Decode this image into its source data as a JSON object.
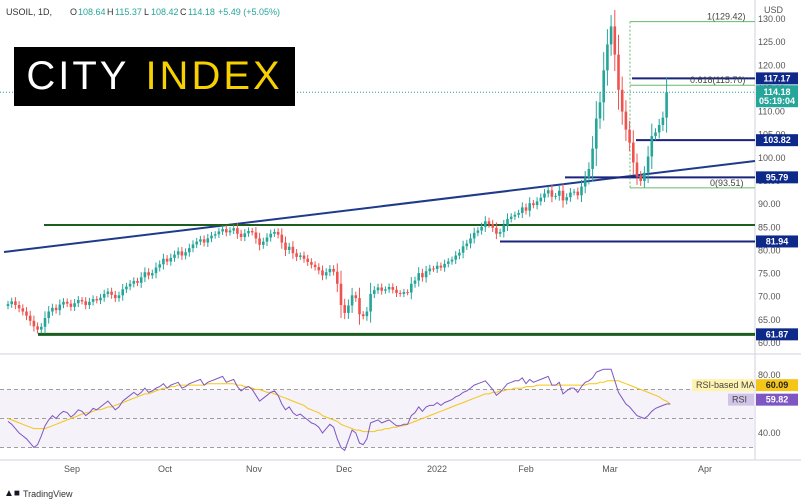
{
  "header": {
    "symbol": "USOIL, 1D,",
    "open_label": "O",
    "open": "108.64",
    "high_label": "H",
    "high": "115.37",
    "low_label": "L",
    "low": "108.42",
    "close_label": "C",
    "close": "114.18",
    "change": "+5.49 (+5.05%)"
  },
  "currency": "USD",
  "logo": {
    "word1": "CITY",
    "word2": "INDEX"
  },
  "footer": {
    "brand": "TradingView",
    "icon": "tradingview-logo-icon"
  },
  "price_tag": {
    "value": "114.18",
    "countdown": "05:19:04"
  },
  "levels": [
    {
      "label": "117.17",
      "value": 117.17
    },
    {
      "label": "103.82",
      "value": 103.82
    },
    {
      "label": "95.79",
      "value": 95.79
    },
    {
      "label": "81.94",
      "value": 81.94
    },
    {
      "label": "61.87",
      "value": 61.87
    }
  ],
  "fib": [
    {
      "label": "1(129.42)",
      "value": 129.42
    },
    {
      "label": "0.618(115.70)",
      "value": 115.7
    },
    {
      "label": "0(93.51)",
      "value": 93.51
    }
  ],
  "rsi_panel": {
    "ma_label": "RSI-based MA",
    "ma_value": "60.09",
    "rsi_label": "RSI",
    "rsi_value": "59.82",
    "ticks": [
      "80.00",
      "40.00"
    ]
  },
  "colors": {
    "up": "#26a69a",
    "down": "#ef5350",
    "level_line": "#1a237e",
    "support_green": "#1b5e20",
    "trend_line": "#1e3a8a",
    "rsi_line": "#7e57c2",
    "rsi_ma": "#f5c518",
    "tag_blue": "#0d2a8a"
  },
  "chart_data": [
    {
      "type": "candlestick",
      "title": "USOIL, 1D",
      "ylabel": "USD",
      "ylim": [
        58,
        131
      ],
      "y_ticks": [
        "130.00",
        "125.00",
        "120.00",
        "115.00",
        "110.00",
        "105.00",
        "100.00",
        "95.00",
        "90.00",
        "85.00",
        "80.00",
        "75.00",
        "70.00",
        "65.00",
        "60.00"
      ],
      "x_ticks": [
        "Sep",
        "Oct",
        "Nov",
        "Dec",
        "2022",
        "Feb",
        "Mar",
        "Apr"
      ],
      "horizontal_levels": [
        117.17,
        103.82,
        95.79,
        85.5,
        81.94,
        61.87
      ],
      "trendline": {
        "from": [
          "Aug",
          80.0
        ],
        "to": [
          "late Mar",
          99.5
        ]
      },
      "fib_retracement": {
        "1": 129.42,
        "0.618": 115.7,
        "0": 93.51
      },
      "last_close": 114.18,
      "closes": [
        68.4,
        69.0,
        68.2,
        67.5,
        66.8,
        65.9,
        64.8,
        63.6,
        62.9,
        63.5,
        65.4,
        66.8,
        67.6,
        67.1,
        68.3,
        68.9,
        68.5,
        67.8,
        68.6,
        69.3,
        69.0,
        68.2,
        68.9,
        69.5,
        69.2,
        69.8,
        70.6,
        71.1,
        70.4,
        69.7,
        70.3,
        71.6,
        72.2,
        72.8,
        73.4,
        73.0,
        74.2,
        75.3,
        74.6,
        75.1,
        76.3,
        77.0,
        78.2,
        77.6,
        78.4,
        79.1,
        79.8,
        78.9,
        79.6,
        80.5,
        81.3,
        81.9,
        82.4,
        81.7,
        82.6,
        83.2,
        83.5,
        84.1,
        84.6,
        83.9,
        84.3,
        84.8,
        83.6,
        82.9,
        83.7,
        84.2,
        83.9,
        82.6,
        81.2,
        81.9,
        82.8,
        83.6,
        84.0,
        83.4,
        81.7,
        80.1,
        80.8,
        79.4,
        78.6,
        78.9,
        78.2,
        77.5,
        76.9,
        76.4,
        75.7,
        74.6,
        75.3,
        76.0,
        75.4,
        72.8,
        68.2,
        66.5,
        68.1,
        70.3,
        69.7,
        66.2,
        65.8,
        66.8,
        70.6,
        71.4,
        72.0,
        71.3,
        71.6,
        72.1,
        71.5,
        70.8,
        70.6,
        71.0,
        70.9,
        72.8,
        73.5,
        75.1,
        74.2,
        75.5,
        76.1,
        76.0,
        76.7,
        76.3,
        77.1,
        77.6,
        78.0,
        78.9,
        79.5,
        80.9,
        81.5,
        82.6,
        83.8,
        84.3,
        85.1,
        86.3,
        85.7,
        84.9,
        83.6,
        84.0,
        85.4,
        86.8,
        87.3,
        87.7,
        88.1,
        89.3,
        88.6,
        90.2,
        89.8,
        90.6,
        91.4,
        92.3,
        93.0,
        91.6,
        91.8,
        92.9,
        90.8,
        91.5,
        92.5,
        92.7,
        91.9,
        93.8,
        95.7,
        97.6,
        102.0,
        108.5,
        112.0,
        118.9,
        124.5,
        128.4,
        122.3,
        114.7,
        110.0,
        106.1,
        103.3,
        99.0,
        96.1,
        95.0,
        96.8,
        100.3,
        104.7,
        105.5,
        107.1,
        108.7,
        114.2
      ],
      "rsi": {
        "y_ticks": [
          "80.00",
          "40.00"
        ],
        "rsi_last": 59.82,
        "ma_last": 60.09,
        "rsi_values": [
          48,
          46,
          43,
          40,
          38,
          36,
          33,
          30,
          32,
          38,
          45,
          49,
          52,
          50,
          53,
          55,
          54,
          51,
          53,
          56,
          55,
          52,
          54,
          57,
          56,
          58,
          60,
          62,
          59,
          56,
          58,
          62,
          64,
          66,
          68,
          66,
          68,
          71,
          68,
          69,
          71,
          72,
          74,
          71,
          73,
          74,
          75,
          71,
          72,
          74,
          75,
          76,
          77,
          73,
          75,
          76,
          77,
          78,
          79,
          75,
          76,
          77,
          72,
          69,
          71,
          72,
          70,
          66,
          62,
          64,
          66,
          68,
          69,
          66,
          60,
          56,
          58,
          54,
          52,
          53,
          51,
          49,
          47,
          46,
          44,
          40,
          43,
          46,
          44,
          36,
          30,
          28,
          35,
          42,
          40,
          33,
          32,
          36,
          47,
          48,
          49,
          47,
          48,
          49,
          47,
          45,
          45,
          46,
          46,
          52,
          54,
          58,
          55,
          58,
          59,
          59,
          61,
          59,
          61,
          62,
          63,
          65,
          66,
          68,
          69,
          71,
          73,
          74,
          75,
          76,
          73,
          70,
          66,
          68,
          71,
          74,
          75,
          76,
          76,
          78,
          74,
          77,
          75,
          76,
          77,
          78,
          79,
          73,
          73,
          75,
          67,
          69,
          71,
          71,
          68,
          72,
          75,
          76,
          78,
          82,
          83,
          84,
          84,
          84,
          76,
          68,
          64,
          60,
          58,
          55,
          52,
          51,
          50,
          52,
          55,
          57,
          58,
          59,
          60,
          60
        ],
        "ma_values": [
          50,
          49,
          48,
          47,
          46,
          45,
          44,
          43,
          43,
          43,
          43,
          44,
          45,
          46,
          47,
          48,
          49,
          50,
          51,
          52,
          53,
          54,
          54,
          55,
          56,
          56,
          57,
          58,
          58,
          59,
          60,
          61,
          62,
          63,
          64,
          65,
          66,
          67,
          67,
          68,
          69,
          70,
          71,
          71,
          72,
          72,
          73,
          73,
          73,
          73,
          73,
          73,
          73,
          73,
          74,
          74,
          74,
          74,
          74,
          74,
          74,
          74,
          73,
          73,
          72,
          72,
          71,
          70,
          70,
          69,
          68,
          68,
          67,
          66,
          65,
          64,
          63,
          62,
          61,
          60,
          59,
          57,
          56,
          55,
          54,
          52,
          51,
          50,
          49,
          48,
          46,
          45,
          44,
          43,
          42,
          42,
          41,
          41,
          41,
          41,
          42,
          42,
          43,
          43,
          44,
          44,
          45,
          45,
          46,
          47,
          48,
          49,
          50,
          51,
          52,
          53,
          54,
          55,
          56,
          57,
          58,
          59,
          60,
          61,
          62,
          63,
          64,
          65,
          66,
          67,
          67,
          68,
          68,
          69,
          69,
          70,
          70,
          71,
          71,
          71,
          72,
          72,
          72,
          73,
          73,
          73,
          73,
          73,
          73,
          73,
          73,
          73,
          73,
          73,
          73,
          73,
          73,
          74,
          74,
          74,
          75,
          75,
          76,
          76,
          76,
          76,
          75,
          74,
          73,
          72,
          71,
          70,
          69,
          68,
          67,
          66,
          65,
          63,
          62,
          60
        ]
      }
    }
  ]
}
